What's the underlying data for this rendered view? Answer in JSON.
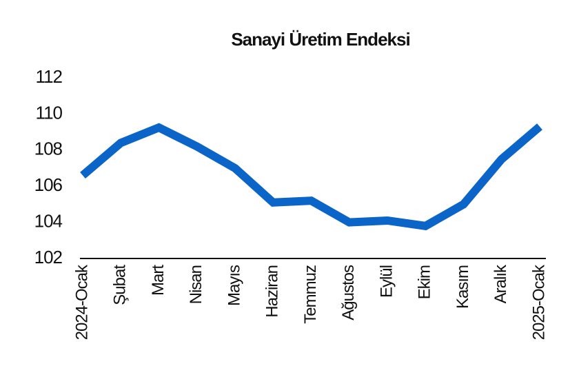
{
  "chart_data": {
    "type": "line",
    "title": "Sanayi Üretim Endeksi",
    "categories": [
      "2024-Ocak",
      "Şubat",
      "Mart",
      "Nisan",
      "Mayıs",
      "Haziran",
      "Temmuz",
      "Ağustos",
      "Eylül",
      "Ekim",
      "Kasım",
      "Aralık",
      "2025-Ocak"
    ],
    "series": [
      {
        "name": "Sanayi Üretim Endeksi",
        "color": "#0b64c8",
        "values": [
          106.6,
          108.4,
          109.25,
          108.2,
          107.0,
          105.1,
          105.2,
          104.0,
          104.1,
          103.8,
          105.0,
          107.5,
          109.3
        ]
      }
    ],
    "ylim": [
      102,
      112
    ],
    "yticks": [
      102,
      104,
      106,
      108,
      110,
      112
    ],
    "grid": false
  }
}
